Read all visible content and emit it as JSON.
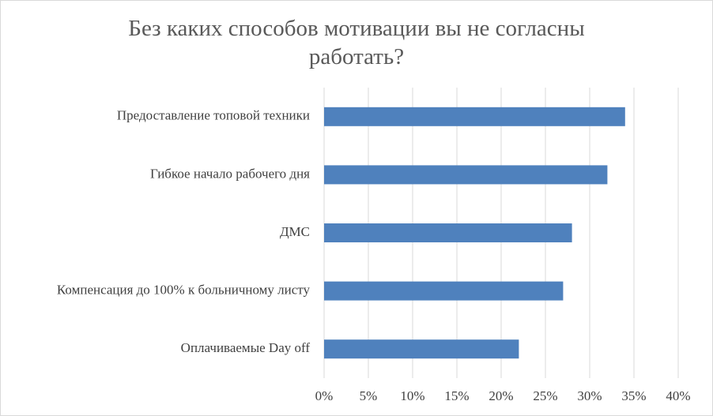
{
  "chart_data": {
    "type": "hbar",
    "title": "Без каких способов мотивации вы не согласны работать?",
    "categories": [
      "Предоставление топовой техники",
      "Гибкое начало рабочего дня",
      "ДМС",
      "Компенсация до 100% к больничному листу",
      "Оплачиваемые Day off"
    ],
    "values": [
      34,
      32,
      28,
      27,
      22
    ],
    "color": "#4f81bd",
    "xlim": [
      0,
      40
    ],
    "xticks": [
      {
        "value": 0,
        "label": "0%"
      },
      {
        "value": 5,
        "label": "5%"
      },
      {
        "value": 10,
        "label": "10%"
      },
      {
        "value": 15,
        "label": "15%"
      },
      {
        "value": 20,
        "label": "20%"
      },
      {
        "value": 25,
        "label": "25%"
      },
      {
        "value": 30,
        "label": "30%"
      },
      {
        "value": 35,
        "label": "35%"
      },
      {
        "value": 40,
        "label": "40%"
      }
    ],
    "grid": true
  }
}
